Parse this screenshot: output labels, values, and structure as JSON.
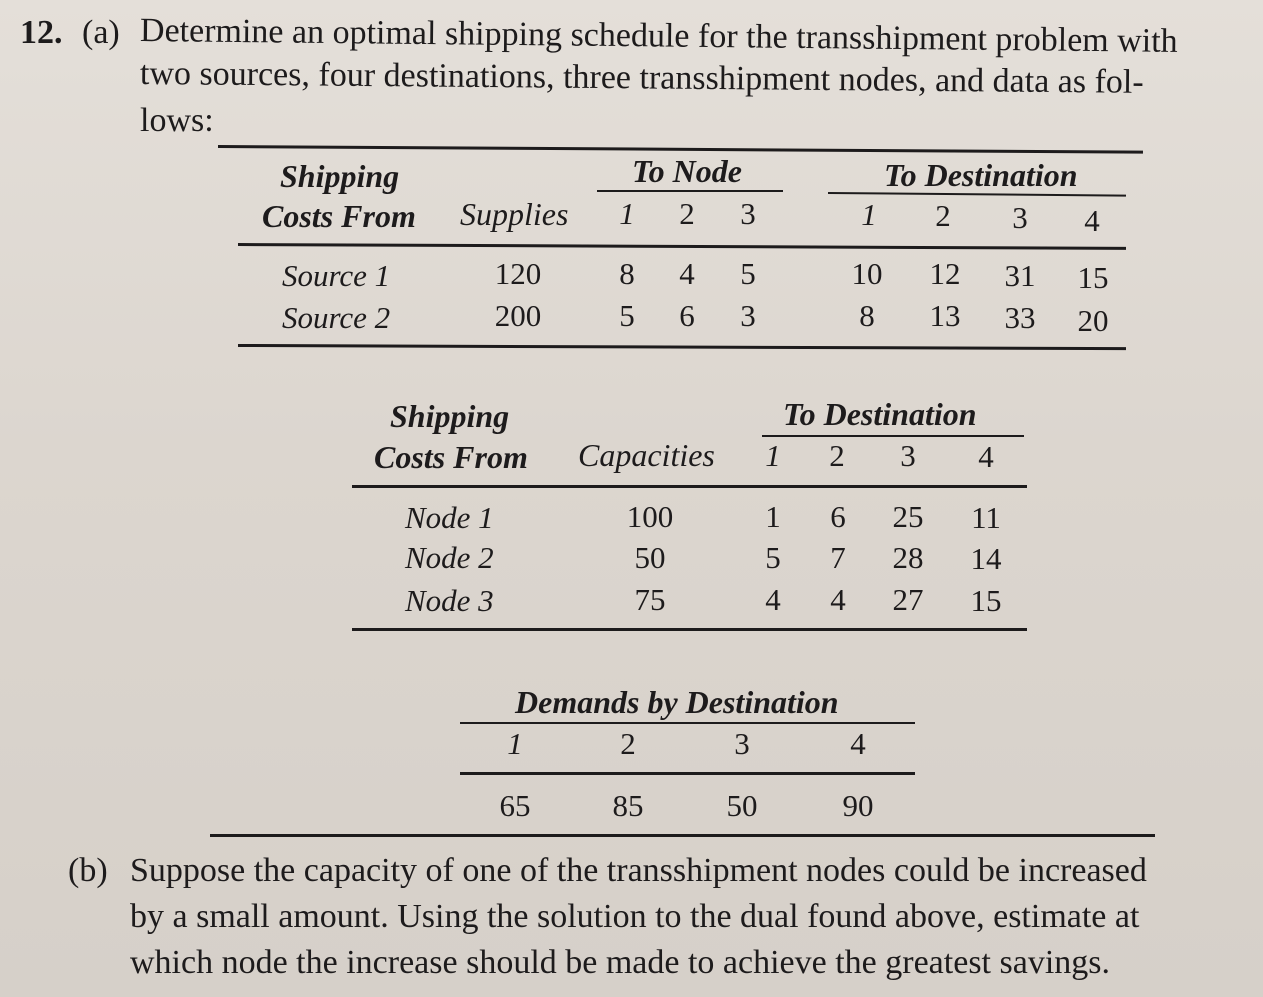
{
  "problem": {
    "number": "12.",
    "part_a_label": "(a)",
    "part_a_line1": "Determine an optimal shipping schedule for the transshipment problem with",
    "part_a_line2": "two sources, four destinations, three transshipment nodes, and data as fol-",
    "part_a_line3": "lows:",
    "part_b_label": "(b)",
    "part_b_line1": "Suppose the capacity of one of the transshipment nodes could be increased",
    "part_b_line2": "by a small amount. Using the solution to the dual found above, estimate at",
    "part_b_line3": "which node the increase should be made to achieve the greatest savings."
  },
  "table1": {
    "header_shipping": "Shipping",
    "header_costs_from": "Costs From",
    "header_supplies": "Supplies",
    "header_to_node": "To Node",
    "header_to_destination": "To Destination",
    "node_cols": [
      "1",
      "2",
      "3"
    ],
    "dest_cols": [
      "1",
      "2",
      "3",
      "4"
    ],
    "rows": [
      {
        "label": "Source 1",
        "supply": "120",
        "node": [
          "8",
          "4",
          "5"
        ],
        "dest": [
          "10",
          "12",
          "31",
          "15"
        ]
      },
      {
        "label": "Source 2",
        "supply": "200",
        "node": [
          "5",
          "6",
          "3"
        ],
        "dest": [
          "8",
          "13",
          "33",
          "20"
        ]
      }
    ]
  },
  "table2": {
    "header_shipping": "Shipping",
    "header_costs_from": "Costs From",
    "header_capacities": "Capacities",
    "header_to_destination": "To Destination",
    "dest_cols": [
      "1",
      "2",
      "3",
      "4"
    ],
    "rows": [
      {
        "label": "Node 1",
        "capacity": "100",
        "dest": [
          "1",
          "6",
          "25",
          "11"
        ]
      },
      {
        "label": "Node 2",
        "capacity": "50",
        "dest": [
          "5",
          "7",
          "28",
          "14"
        ]
      },
      {
        "label": "Node 3",
        "capacity": "75",
        "dest": [
          "4",
          "4",
          "27",
          "15"
        ]
      }
    ]
  },
  "table3": {
    "header": "Demands by Destination",
    "cols": [
      "1",
      "2",
      "3",
      "4"
    ],
    "values": [
      "65",
      "85",
      "50",
      "90"
    ]
  }
}
